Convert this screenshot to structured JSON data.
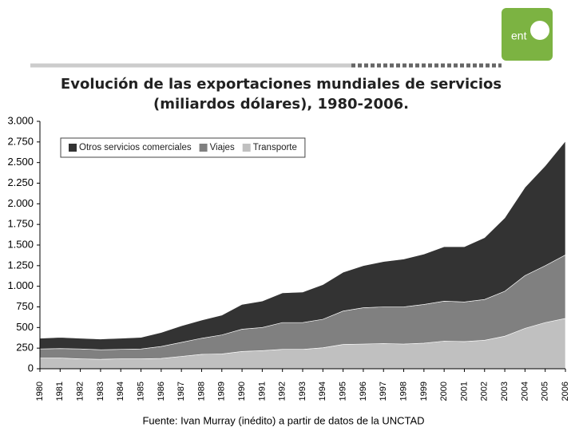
{
  "logo": "ent",
  "chart_data": {
    "type": "stacked_area",
    "title": "Evolución de las exportaciones mundiales de servicios",
    "subtitle": "(miliardos dólares), 1980-2006.",
    "source": "Fuente: Ivan Murray (inédito) a partir de datos de la UNCTAD",
    "categories": [
      "1980",
      "1981",
      "1982",
      "1983",
      "1984",
      "1985",
      "1986",
      "1987",
      "1988",
      "1989",
      "1990",
      "1991",
      "1992",
      "1993",
      "1994",
      "1995",
      "1996",
      "1997",
      "1998",
      "1999",
      "2000",
      "2001",
      "2002",
      "2003",
      "2004",
      "2005",
      "2006"
    ],
    "series": [
      {
        "name": "Otros servicios comerciales",
        "color": "#333333",
        "values": [
          130,
          135,
          130,
          130,
          135,
          140,
          170,
          200,
          220,
          240,
          300,
          320,
          360,
          370,
          420,
          470,
          510,
          550,
          580,
          610,
          660,
          670,
          750,
          890,
          1070,
          1210,
          1380
        ]
      },
      {
        "name": "Viajes",
        "color": "#808080",
        "values": [
          110,
          115,
          120,
          115,
          115,
          120,
          145,
          170,
          195,
          230,
          270,
          280,
          325,
          325,
          345,
          405,
          440,
          445,
          450,
          470,
          485,
          480,
          495,
          545,
          640,
          690,
          770
        ]
      },
      {
        "name": "Transporte",
        "color": "#c0c0c0",
        "values": [
          130,
          130,
          120,
          115,
          120,
          120,
          125,
          150,
          175,
          180,
          210,
          220,
          235,
          235,
          255,
          295,
          300,
          305,
          300,
          310,
          335,
          330,
          345,
          395,
          490,
          560,
          610
        ]
      }
    ],
    "ylim": [
      0,
      3000
    ],
    "yticks": [
      0,
      250,
      500,
      750,
      {
        "value": 1000,
        "label": "1.000"
      },
      {
        "value": 1250,
        "label": "1.250"
      },
      {
        "value": 1500,
        "label": "1.500"
      },
      {
        "value": 1750,
        "label": "1.750"
      },
      {
        "value": 2000,
        "label": "2.000"
      },
      {
        "value": 2250,
        "label": "2.250"
      },
      {
        "value": 2500,
        "label": "2.500"
      },
      {
        "value": 2750,
        "label": "2.750"
      },
      {
        "value": 3000,
        "label": "3.000"
      }
    ],
    "grid": false,
    "legend": "top-left"
  }
}
